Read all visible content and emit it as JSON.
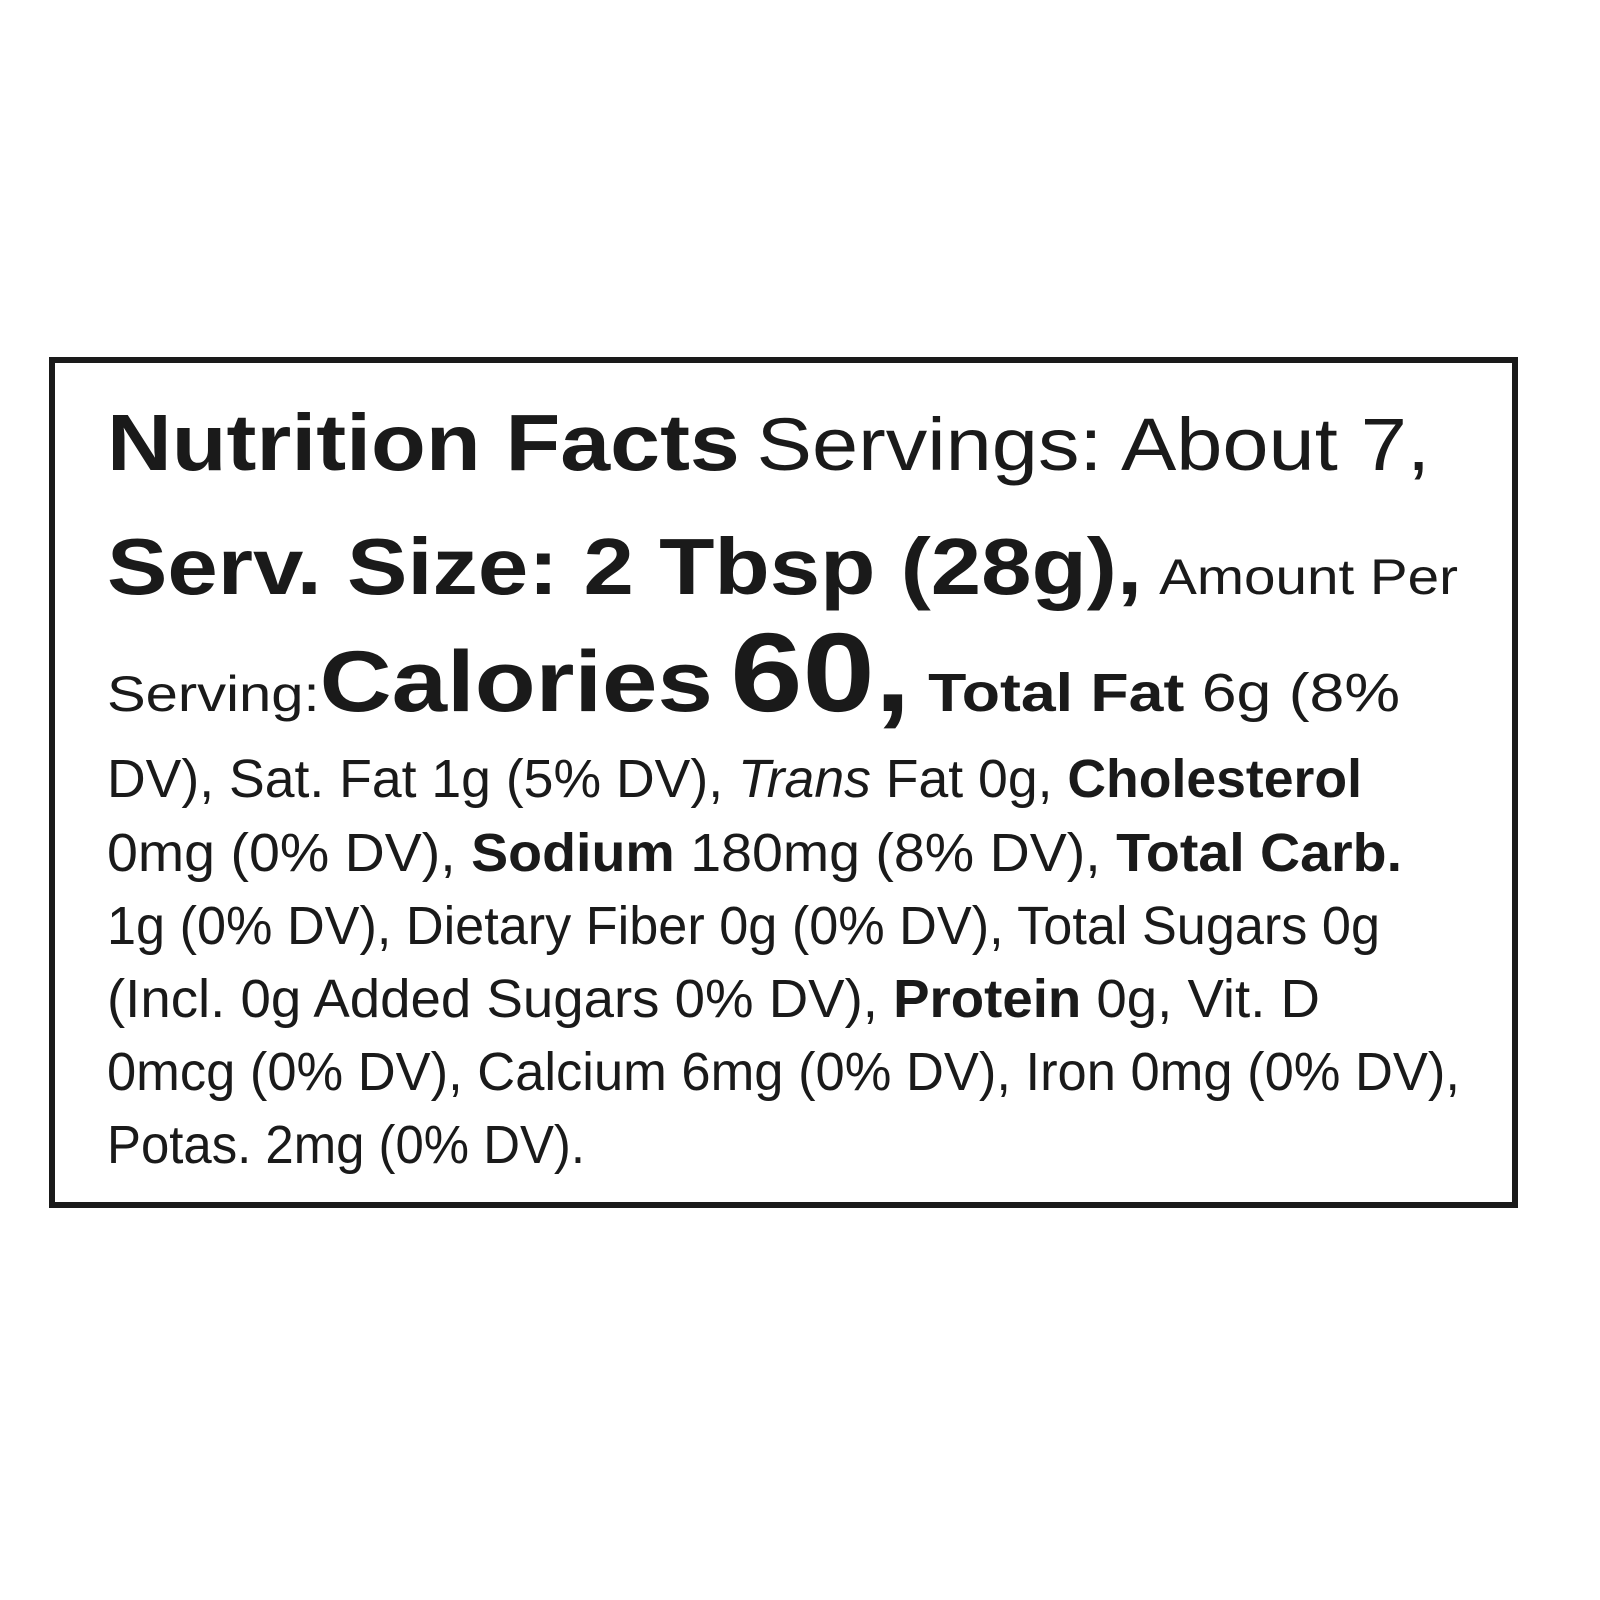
{
  "label": {
    "title": "Nutrition Facts",
    "servings": "Servings: About 7,",
    "serving_size": "Serv. Size: 2 Tbsp (28g),",
    "amount_per": "Amount Per",
    "serving_word": "Serving:",
    "calories_label": "Calories",
    "calories_value": "60,",
    "total_fat_label": "Total Fat",
    "total_fat_value": "6g (8%",
    "line4_a": "DV), Sat. Fat 1g (5% DV),",
    "trans_label": "Trans",
    "line4_b": "Fat 0g,",
    "cholesterol_label": "Cholesterol",
    "line5_a": "0mg (0% DV),",
    "sodium_label": "Sodium",
    "line5_b": "180mg (8% DV),",
    "total_carb_label": "Total Carb.",
    "line6": "1g (0% DV), Dietary Fiber 0g (0% DV), Total Sugars 0g",
    "line7_a": "(Incl. 0g Added Sugars 0% DV),",
    "protein_label": "Protein",
    "line7_b": "0g, Vit. D",
    "line8": "0mcg (0% DV), Calcium 6mg (0% DV), Iron 0mg (0% DV),",
    "line9": "Potas. 2mg (0% DV)."
  },
  "colors": {
    "text": "#1a1a1a",
    "border": "#1a1a1a",
    "background": "#ffffff"
  }
}
